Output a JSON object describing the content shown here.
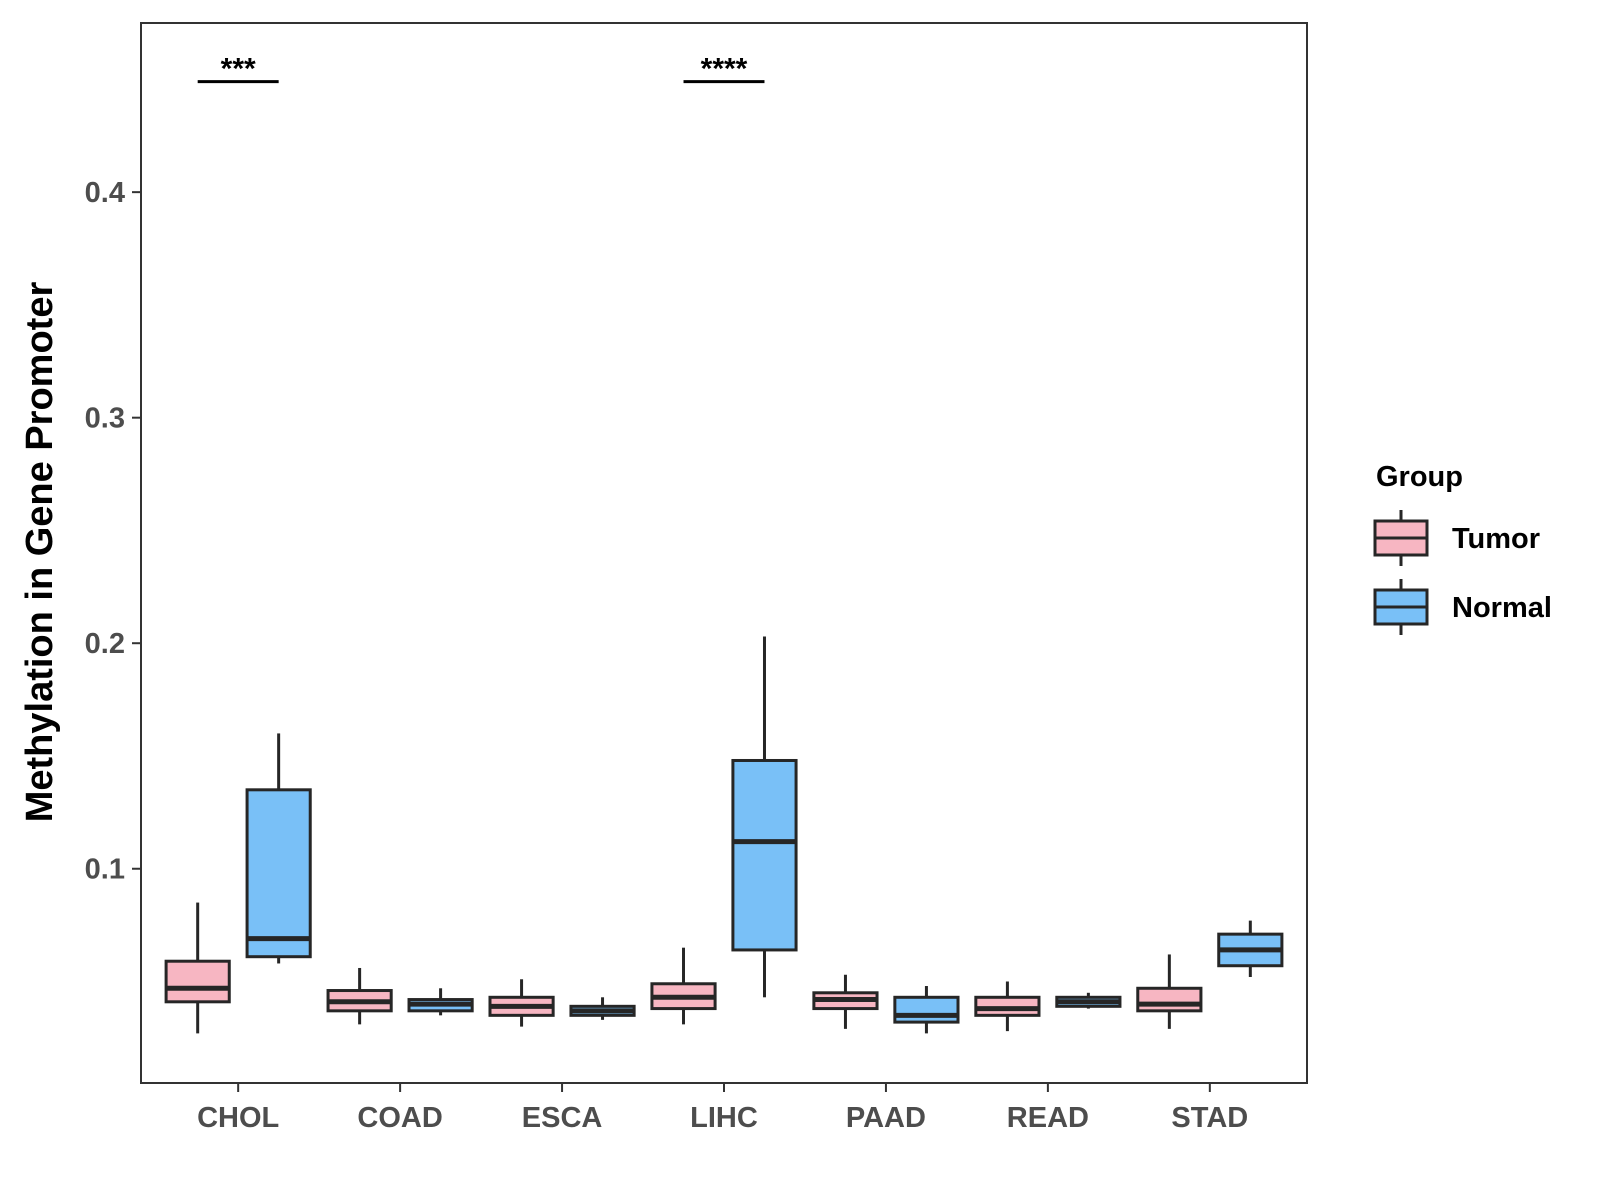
{
  "chart_data": {
    "type": "boxplot",
    "title": "",
    "xlabel": "",
    "ylabel": "Methylation in Gene Promoter",
    "ylim": [
      0.005,
      0.475
    ],
    "yticks": [
      0.1,
      0.2,
      0.3,
      0.4
    ],
    "ytick_labels": [
      "0.1",
      "0.2",
      "0.3",
      "0.4"
    ],
    "categories": [
      "CHOL",
      "COAD",
      "ESCA",
      "LIHC",
      "PAAD",
      "READ",
      "STAD"
    ],
    "legend": {
      "title": "Group",
      "position": "right",
      "entries": [
        {
          "name": "Tumor",
          "color": "#f7b6c2"
        },
        {
          "name": "Normal",
          "color": "#79c0f7"
        }
      ]
    },
    "series": [
      {
        "name": "Tumor",
        "color": "#f7b6c2",
        "boxes": [
          {
            "category": "CHOL",
            "min": 0.027,
            "q1": 0.041,
            "median": 0.047,
            "q3": 0.059,
            "max": 0.085
          },
          {
            "category": "COAD",
            "min": 0.031,
            "q1": 0.037,
            "median": 0.041,
            "q3": 0.046,
            "max": 0.056
          },
          {
            "category": "ESCA",
            "min": 0.03,
            "q1": 0.035,
            "median": 0.039,
            "q3": 0.043,
            "max": 0.051
          },
          {
            "category": "LIHC",
            "min": 0.031,
            "q1": 0.038,
            "median": 0.043,
            "q3": 0.049,
            "max": 0.065
          },
          {
            "category": "PAAD",
            "min": 0.029,
            "q1": 0.038,
            "median": 0.042,
            "q3": 0.045,
            "max": 0.053
          },
          {
            "category": "READ",
            "min": 0.028,
            "q1": 0.035,
            "median": 0.038,
            "q3": 0.043,
            "max": 0.05
          },
          {
            "category": "STAD",
            "min": 0.029,
            "q1": 0.037,
            "median": 0.04,
            "q3": 0.047,
            "max": 0.062
          }
        ]
      },
      {
        "name": "Normal",
        "color": "#79c0f7",
        "boxes": [
          {
            "category": "CHOL",
            "min": 0.058,
            "q1": 0.061,
            "median": 0.069,
            "q3": 0.135,
            "max": 0.16
          },
          {
            "category": "COAD",
            "min": 0.035,
            "q1": 0.037,
            "median": 0.04,
            "q3": 0.042,
            "max": 0.047
          },
          {
            "category": "ESCA",
            "min": 0.033,
            "q1": 0.035,
            "median": 0.037,
            "q3": 0.039,
            "max": 0.043
          },
          {
            "category": "LIHC",
            "min": 0.043,
            "q1": 0.064,
            "median": 0.112,
            "q3": 0.148,
            "max": 0.203
          },
          {
            "category": "PAAD",
            "min": 0.027,
            "q1": 0.032,
            "median": 0.035,
            "q3": 0.043,
            "max": 0.048
          },
          {
            "category": "READ",
            "min": 0.038,
            "q1": 0.039,
            "median": 0.041,
            "q3": 0.043,
            "max": 0.045
          },
          {
            "category": "STAD",
            "min": 0.052,
            "q1": 0.057,
            "median": 0.064,
            "q3": 0.071,
            "max": 0.077
          }
        ]
      }
    ],
    "annotations": [
      {
        "category": "CHOL",
        "label": "***",
        "y": 0.449
      },
      {
        "category": "LIHC",
        "label": "****",
        "y": 0.449
      }
    ]
  }
}
